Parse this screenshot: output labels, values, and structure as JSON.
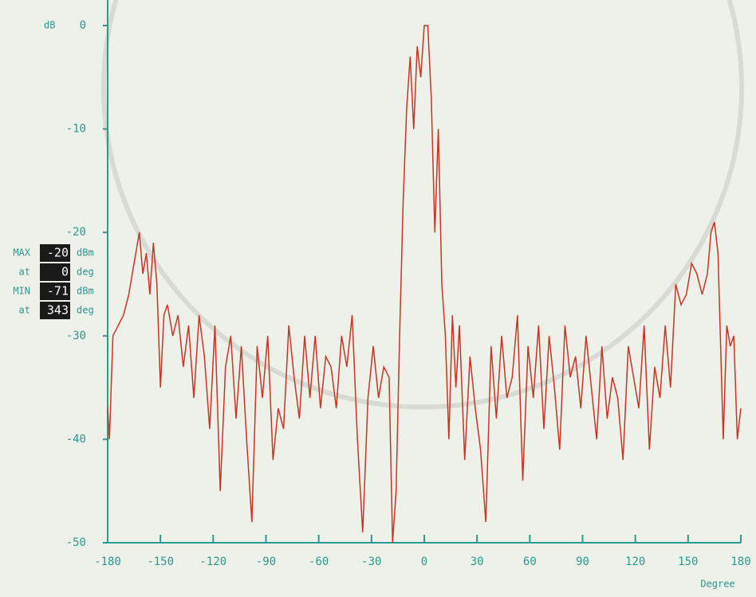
{
  "chart_data": {
    "type": "line",
    "ylabel": "dB",
    "xlabel": "Degree",
    "color": "#cc3322",
    "xlim": [
      -180,
      180
    ],
    "ylim": [
      -50,
      0
    ],
    "xticks": [
      -180,
      -150,
      -120,
      -90,
      -60,
      -30,
      0,
      30,
      60,
      90,
      120,
      150,
      180
    ],
    "yticks": [
      0,
      -10,
      -20,
      -30,
      -40,
      -50
    ],
    "x": [
      -180,
      -179,
      -177,
      -174,
      -171,
      -168,
      -165,
      -162,
      -160,
      -158,
      -156,
      -154,
      -152,
      -150,
      -148,
      -146,
      -143,
      -140,
      -137,
      -134,
      -131,
      -128,
      -125,
      -122,
      -119,
      -116,
      -113,
      -110,
      -107,
      -104,
      -101,
      -98,
      -95,
      -92,
      -89,
      -86,
      -83,
      -80,
      -77,
      -74,
      -71,
      -68,
      -65,
      -62,
      -59,
      -56,
      -53,
      -50,
      -47,
      -44,
      -41,
      -38,
      -35,
      -32,
      -29,
      -26,
      -23,
      -20,
      -18,
      -16,
      -14,
      -12,
      -10,
      -8,
      -6,
      -4,
      -2,
      0,
      2,
      4,
      6,
      8,
      10,
      12,
      14,
      16,
      18,
      20,
      23,
      26,
      29,
      32,
      35,
      38,
      41,
      44,
      47,
      50,
      53,
      56,
      59,
      62,
      65,
      68,
      71,
      74,
      77,
      80,
      83,
      86,
      89,
      92,
      95,
      98,
      101,
      104,
      107,
      110,
      113,
      116,
      119,
      122,
      125,
      128,
      131,
      134,
      137,
      140,
      143,
      146,
      149,
      152,
      155,
      158,
      161,
      163,
      165,
      167,
      170,
      172,
      174,
      176,
      178,
      180
    ],
    "values": [
      -37,
      -40,
      -30,
      -29,
      -28,
      -26,
      -23,
      -20,
      -24,
      -22,
      -26,
      -21,
      -25,
      -35,
      -28,
      -27,
      -30,
      -28,
      -33,
      -29,
      -36,
      -28,
      -32,
      -39,
      -29,
      -45,
      -33,
      -30,
      -38,
      -31,
      -40,
      -48,
      -31,
      -36,
      -30,
      -42,
      -37,
      -39,
      -29,
      -34,
      -38,
      -30,
      -36,
      -30,
      -37,
      -32,
      -33,
      -37,
      -30,
      -33,
      -28,
      -40,
      -49,
      -36,
      -31,
      -36,
      -33,
      -34,
      -50,
      -45,
      -30,
      -17,
      -8,
      -3,
      -10,
      -2,
      -5,
      0,
      0,
      -7,
      -20,
      -10,
      -25,
      -30,
      -40,
      -28,
      -35,
      -29,
      -42,
      -32,
      -37,
      -41,
      -48,
      -31,
      -38,
      -30,
      -36,
      -34,
      -28,
      -44,
      -31,
      -36,
      -29,
      -39,
      -30,
      -35,
      -41,
      -29,
      -34,
      -32,
      -37,
      -30,
      -35,
      -40,
      -31,
      -38,
      -34,
      -36,
      -42,
      -31,
      -34,
      -37,
      -29,
      -41,
      -33,
      -36,
      -29,
      -35,
      -25,
      -27,
      -26,
      -23,
      -24,
      -26,
      -24,
      -20,
      -19,
      -22,
      -40,
      -29,
      -31,
      -30,
      -40,
      -37
    ]
  },
  "panel": {
    "rows": [
      {
        "label": "MAX",
        "value": -20,
        "unit": "dBm"
      },
      {
        "label": "at",
        "value": 0,
        "unit": "deg"
      },
      {
        "label": "MIN",
        "value": -71,
        "unit": "dBm"
      },
      {
        "label": "at",
        "value": 343,
        "unit": "deg"
      }
    ]
  }
}
